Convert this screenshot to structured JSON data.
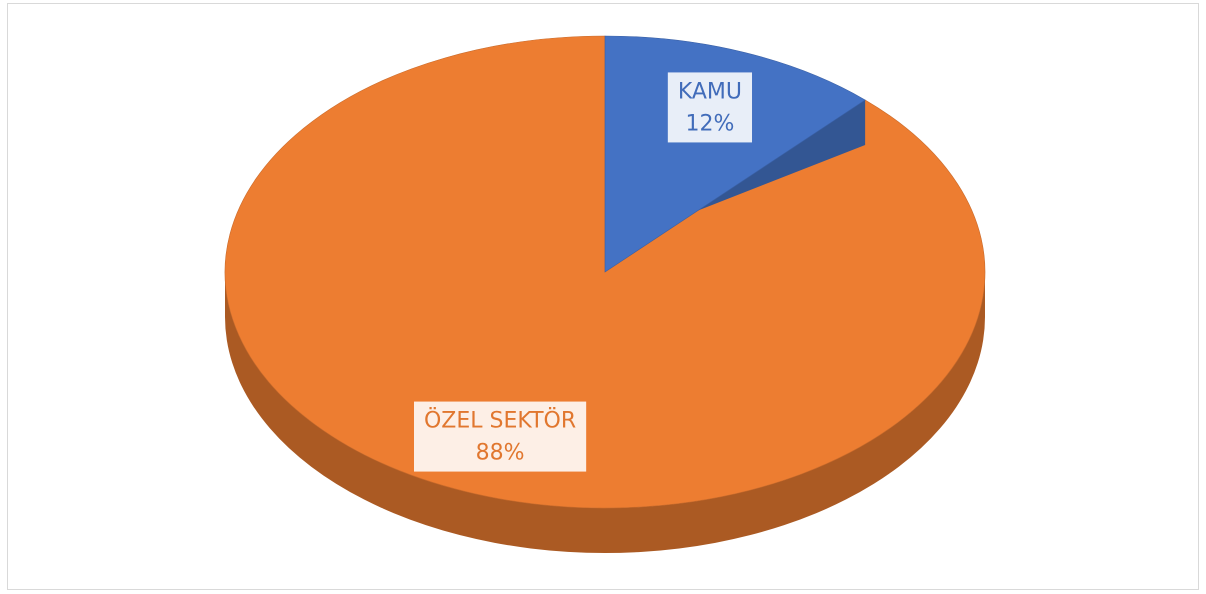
{
  "chart_data": {
    "type": "pie",
    "categories": [
      "KAMU",
      "ÖZEL SEKTÖR"
    ],
    "values": [
      12,
      88
    ],
    "value_labels": [
      "12%",
      "88%"
    ],
    "colors": [
      "#4472c4",
      "#ed7d31"
    ]
  }
}
